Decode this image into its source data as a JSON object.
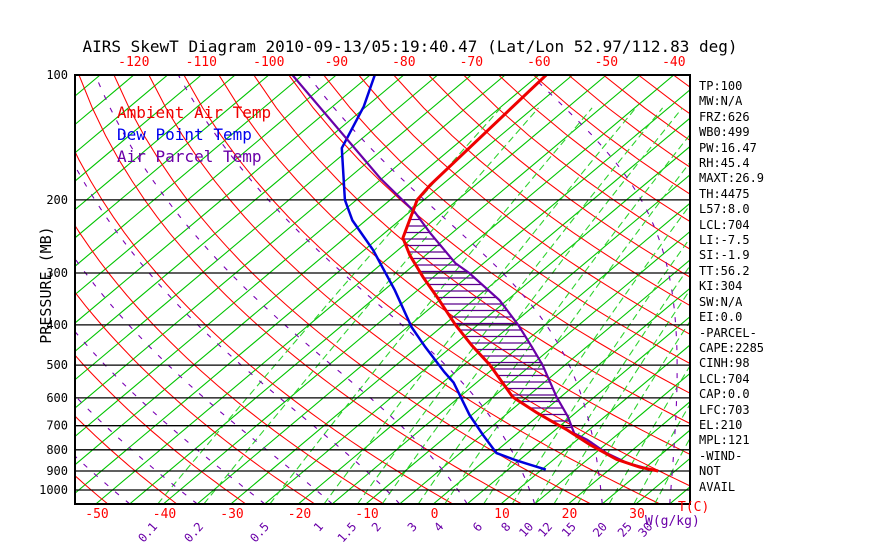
{
  "title": "AIRS SkewT Diagram 2010-09-13/05:19:40.47 (Lat/Lon 52.97/112.83 deg)",
  "legend": {
    "items": [
      {
        "label": "Ambient Air Temp",
        "color": "#ee0000"
      },
      {
        "label": "Dew Point Temp",
        "color": "#0000ee"
      },
      {
        "label": "Air Parcel Temp",
        "color": "#6a00a8"
      }
    ]
  },
  "axes": {
    "top": {
      "ticks": [
        -120,
        -110,
        -100,
        -90,
        -80,
        -70,
        -60,
        -50,
        -40
      ],
      "color": "#ff0000"
    },
    "bottom": {
      "ticks": [
        -50,
        -40,
        -30,
        -20,
        -10,
        0,
        10,
        20,
        30
      ],
      "unit": "T(C)",
      "color": "#ff0000"
    },
    "left": {
      "title": "PRESSURE (MB)",
      "ticks": [
        100,
        200,
        300,
        400,
        500,
        600,
        700,
        800,
        900,
        1000
      ],
      "color": "#000000"
    },
    "mixing": {
      "ticks": [
        0.1,
        0.2,
        0.5,
        1,
        1.5,
        2,
        3,
        4,
        6,
        8,
        10,
        12,
        15,
        20,
        25,
        30
      ],
      "unit": "W(g/kg)",
      "color": "#6a00a8"
    }
  },
  "panel": {
    "items": [
      "TP:100",
      "MW:N/A",
      "FRZ:626",
      "WB0:499",
      "PW:16.47",
      "RH:45.4",
      "MAXT:26.9",
      "TH:4475",
      "L57:8.0",
      "LCL:704",
      "LI:-7.5",
      "SI:-1.9",
      "TT:56.2",
      "KI:304",
      "SW:N/A",
      "EI:0.0",
      "-PARCEL-",
      "CAPE:2285",
      "CINH:98",
      "LCL:704",
      "CAP:0.0",
      "LFC:703",
      "EL:210",
      "MPL:121",
      "-WIND-",
      "NOT",
      "AVAIL"
    ]
  },
  "colors": {
    "isotherm": "#00c400",
    "dry_adiabat": "#ff0000",
    "mixing_ratio_line": "#2ed22e",
    "moist_adiabat": "#7a00b4",
    "pressure_line": "#000000",
    "frame": "#000000",
    "hatch": "#5a008c"
  },
  "chart_data": {
    "type": "line",
    "subtype": "skewt-log-p",
    "title": "AIRS SkewT Diagram 2010-09-13/05:19:40.47 (Lat/Lon 52.97/112.83 deg)",
    "pressure_axis": {
      "label": "PRESSURE (MB)",
      "scale": "log",
      "range": [
        100,
        1080
      ],
      "gridlines_mb": [
        100,
        200,
        300,
        400,
        500,
        600,
        700,
        800,
        900,
        1000
      ]
    },
    "temperature_axis": {
      "label": "T(C)",
      "bottom_labels_c": [
        -50,
        -40,
        -30,
        -20,
        -10,
        0,
        10,
        20,
        30
      ],
      "top_labels_c": [
        -120,
        -110,
        -100,
        -90,
        -80,
        -70,
        -60,
        -50,
        -40
      ]
    },
    "isotherms_c": {
      "min": -130,
      "max": 35,
      "step": 5
    },
    "dry_adiabats_theta_k": {
      "min": 210,
      "max": 470,
      "step": 10
    },
    "moist_adiabats_start_c_at_1050mb": {
      "min": -45,
      "max": 105,
      "step": 10
    },
    "mixing_ratio_lines_g_kg": [
      0.1,
      0.2,
      0.5,
      1,
      1.5,
      2,
      3,
      4,
      6,
      8,
      10,
      12,
      15,
      20,
      25,
      30
    ],
    "series": [
      {
        "name": "Ambient Air Temp",
        "color": "#ee0000",
        "width": 3,
        "points_p_t": [
          [
            100,
            -58.9
          ],
          [
            184,
            -56.7
          ],
          [
            200,
            -56.0
          ],
          [
            247,
            -51.4
          ],
          [
            272,
            -47.3
          ],
          [
            307,
            -41.5
          ],
          [
            345,
            -35.6
          ],
          [
            400,
            -28.3
          ],
          [
            448,
            -22.3
          ],
          [
            500,
            -16.1
          ],
          [
            597,
            -7.1
          ],
          [
            650,
            -0.9
          ],
          [
            686,
            3.3
          ],
          [
            717,
            6.8
          ],
          [
            778,
            12.8
          ],
          [
            844,
            19.3
          ],
          [
            881,
            24.1
          ],
          [
            900,
            27.5
          ]
        ]
      },
      {
        "name": "Dew Point Temp",
        "color": "#0000dd",
        "width": 2.5,
        "points_p_t": [
          [
            100,
            -84.3
          ],
          [
            119,
            -80.4
          ],
          [
            150,
            -76.3
          ],
          [
            200,
            -66.7
          ],
          [
            224,
            -62.0
          ],
          [
            264,
            -53.7
          ],
          [
            330,
            -43.4
          ],
          [
            405,
            -34.4
          ],
          [
            452,
            -28.9
          ],
          [
            520,
            -21.6
          ],
          [
            551,
            -18.4
          ],
          [
            660,
            -10.3
          ],
          [
            737,
            -4.8
          ],
          [
            815,
            0.4
          ],
          [
            846,
            4.3
          ],
          [
            869,
            7.4
          ],
          [
            893,
            10.6
          ]
        ]
      },
      {
        "name": "Air Parcel Temp",
        "color": "#6a00a8",
        "width": 2.2,
        "points_p_t": [
          [
            100,
            -96.5
          ],
          [
            177,
            -65.4
          ],
          [
            214,
            -54.2
          ],
          [
            240,
            -48.3
          ],
          [
            284,
            -39.2
          ],
          [
            300,
            -35.4
          ],
          [
            349,
            -26.1
          ],
          [
            400,
            -19.0
          ],
          [
            452,
            -13.1
          ],
          [
            500,
            -8.3
          ],
          [
            597,
            -0.6
          ],
          [
            665,
            4.5
          ],
          [
            730,
            8.4
          ],
          [
            757,
            11.5
          ],
          [
            815,
            16.7
          ],
          [
            861,
            21.5
          ],
          [
            893,
            26.2
          ],
          [
            900,
            27.5
          ]
        ]
      }
    ],
    "cape_hatch": {
      "between": [
        "Ambient Air Temp",
        "Air Parcel Temp"
      ],
      "pressure_range_mb": [
        215,
        728
      ],
      "color": "#5a008c"
    },
    "sounding_indices": [
      "TP:100",
      "MW:N/A",
      "FRZ:626",
      "WB0:499",
      "PW:16.47",
      "RH:45.4",
      "MAXT:26.9",
      "TH:4475",
      "L57:8.0",
      "LCL:704",
      "LI:-7.5",
      "SI:-1.9",
      "TT:56.2",
      "KI:304",
      "SW:N/A",
      "EI:0.0",
      "CAPE:2285",
      "CINH:98",
      "CAP:0.0",
      "LFC:703",
      "EL:210",
      "MPL:121"
    ]
  }
}
